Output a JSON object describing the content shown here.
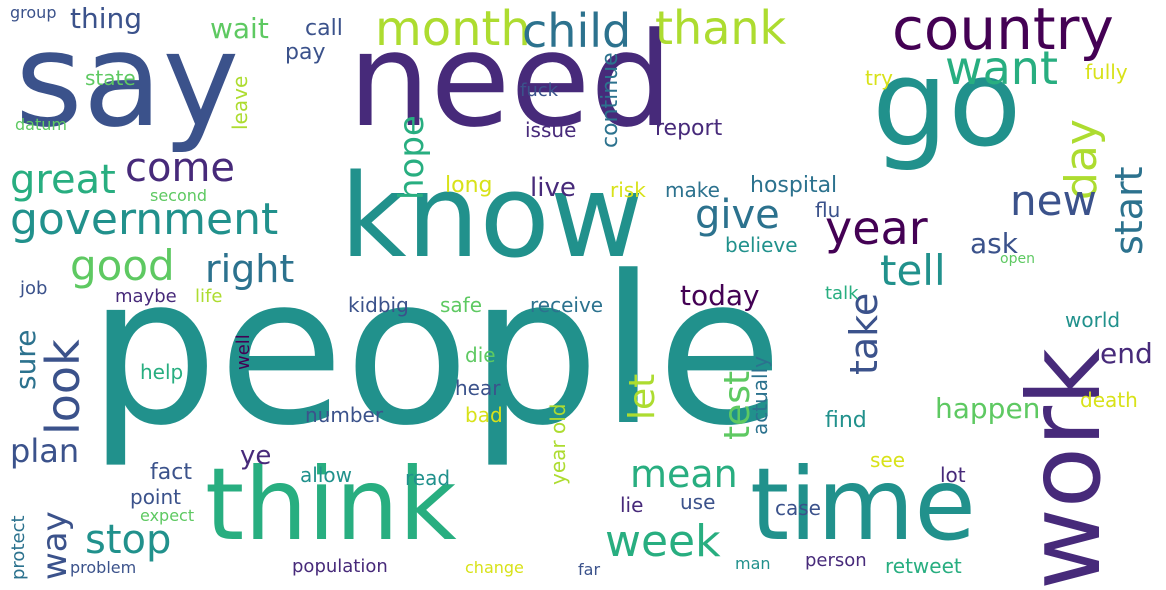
{
  "colors": {
    "background": "#ffffff",
    "palette": [
      "#440154",
      "#472a7a",
      "#3b528b",
      "#2c728e",
      "#21918c",
      "#28ae80",
      "#5ec962",
      "#addc30",
      "#d8e219"
    ]
  },
  "words": [
    {
      "text": "people"
    },
    {
      "text": "say"
    },
    {
      "text": "need"
    },
    {
      "text": "know"
    },
    {
      "text": "go"
    },
    {
      "text": "work"
    },
    {
      "text": "think"
    },
    {
      "text": "time"
    },
    {
      "text": "country"
    },
    {
      "text": "month"
    },
    {
      "text": "child"
    },
    {
      "text": "thank"
    },
    {
      "text": "want"
    },
    {
      "text": "government"
    },
    {
      "text": "day"
    },
    {
      "text": "year"
    },
    {
      "text": "good"
    },
    {
      "text": "right"
    },
    {
      "text": "come"
    },
    {
      "text": "great"
    },
    {
      "text": "give"
    },
    {
      "text": "new"
    },
    {
      "text": "tell"
    },
    {
      "text": "start"
    },
    {
      "text": "hope"
    },
    {
      "text": "look"
    },
    {
      "text": "week"
    },
    {
      "text": "stop"
    },
    {
      "text": "mean"
    },
    {
      "text": "let"
    },
    {
      "text": "take"
    },
    {
      "text": "test"
    },
    {
      "text": "plan"
    },
    {
      "text": "way"
    },
    {
      "text": "sure"
    },
    {
      "text": "today"
    },
    {
      "text": "happen"
    },
    {
      "text": "ask"
    },
    {
      "text": "end"
    },
    {
      "text": "thing"
    },
    {
      "text": "wait"
    },
    {
      "text": "call"
    },
    {
      "text": "pay"
    },
    {
      "text": "report"
    },
    {
      "text": "issue"
    },
    {
      "text": "continue"
    },
    {
      "text": "fuck"
    },
    {
      "text": "hospital"
    },
    {
      "text": "live"
    },
    {
      "text": "risk"
    },
    {
      "text": "make"
    },
    {
      "text": "long"
    },
    {
      "text": "flu"
    },
    {
      "text": "believe"
    },
    {
      "text": "state"
    },
    {
      "text": "leave"
    },
    {
      "text": "datum"
    },
    {
      "text": "second"
    },
    {
      "text": "group"
    },
    {
      "text": "job"
    },
    {
      "text": "maybe"
    },
    {
      "text": "life"
    },
    {
      "text": "kidbig"
    },
    {
      "text": "safe"
    },
    {
      "text": "receive"
    },
    {
      "text": "talk"
    },
    {
      "text": "open"
    },
    {
      "text": "world"
    },
    {
      "text": "help"
    },
    {
      "text": "well"
    },
    {
      "text": "die"
    },
    {
      "text": "hear"
    },
    {
      "text": "number"
    },
    {
      "text": "bad"
    },
    {
      "text": "year old"
    },
    {
      "text": "actually"
    },
    {
      "text": "find"
    },
    {
      "text": "death"
    },
    {
      "text": "ye"
    },
    {
      "text": "fact"
    },
    {
      "text": "allow"
    },
    {
      "text": "read"
    },
    {
      "text": "point"
    },
    {
      "text": "lie"
    },
    {
      "text": "use"
    },
    {
      "text": "case"
    },
    {
      "text": "see"
    },
    {
      "text": "lot"
    },
    {
      "text": "expect"
    },
    {
      "text": "protect"
    },
    {
      "text": "problem"
    },
    {
      "text": "population"
    },
    {
      "text": "change"
    },
    {
      "text": "far"
    },
    {
      "text": "man"
    },
    {
      "text": "person"
    },
    {
      "text": "retweet"
    },
    {
      "text": "try"
    },
    {
      "text": "fully"
    }
  ]
}
